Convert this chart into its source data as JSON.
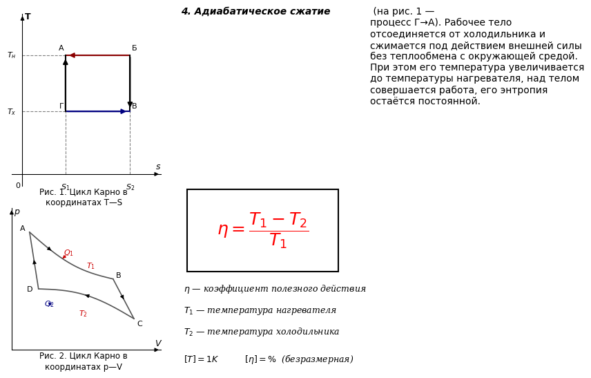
{
  "bg_color": "#ffffff",
  "fig1_title": "Рис. 1. Цикл Карно в\nкоординатах T—S",
  "fig2_title": "Рис. 2. Цикл Карно в\nкоординатах p—V",
  "bold_title": "4. Адиабатическое сжатие",
  "rest_text": " (на рис. 1 — процесс Г→А). Рабочее тело отсоединяется от холодильника и сжимается под действием внешней силы без теплообмена с окружающей средой. При этом его температура увеличивается до температуры нагревателя, над телом совершается работа, его энтропия остаётся постоянной."
}
